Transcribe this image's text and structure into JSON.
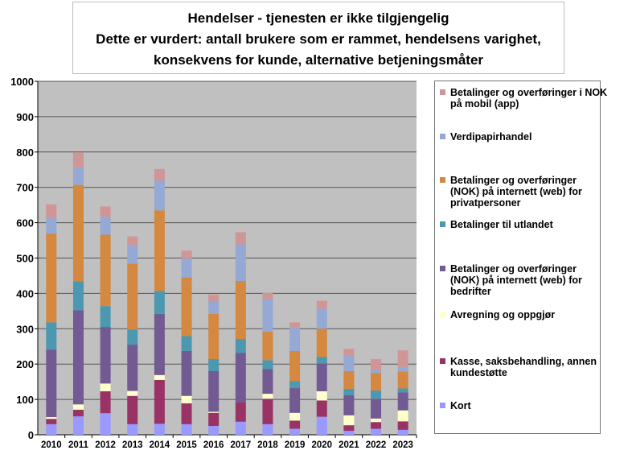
{
  "chart_data": {
    "type": "bar",
    "stacked": true,
    "title": [
      "Hendelser - tjenesten er ikke tilgjengelig",
      "Dette er vurdert: antall brukere som er rammet, hendelsens varighet,",
      "konsekvens for kunde, alternative betjeningsmåter"
    ],
    "xlabel": "",
    "ylabel": "",
    "ylim": [
      0,
      1000
    ],
    "yticks": [
      "0",
      "100",
      "200",
      "300",
      "400",
      "500",
      "600",
      "700",
      "800",
      "900",
      "1000"
    ],
    "grid": true,
    "legend_position": "right",
    "categories": [
      "2010",
      "2011",
      "2012",
      "2013",
      "2014",
      "2015",
      "2016",
      "2017",
      "2018",
      "2019",
      "2020",
      "2021",
      "2022",
      "2023"
    ],
    "series": [
      {
        "name": "Kort",
        "color": "#9999ff",
        "values": [
          30,
          52,
          61,
          30,
          31,
          30,
          25,
          37,
          30,
          17,
          51,
          11,
          17,
          14
        ]
      },
      {
        "name": "Kasse, saksbehandling, annen kundestøtte",
        "color": "#993366",
        "values": [
          15,
          19,
          62,
          80,
          124,
          59,
          37,
          55,
          72,
          23,
          46,
          16,
          19,
          24
        ]
      },
      {
        "name": "Avregning og oppgjør",
        "color": "#ffffcc",
        "values": [
          5,
          15,
          22,
          14,
          14,
          21,
          3,
          0,
          14,
          22,
          26,
          28,
          10,
          31
        ]
      },
      {
        "name": "Betalinger og overføringer (NOK) på internett (web) for bedrifter",
        "color": "#725a92",
        "values": [
          191,
          266,
          160,
          131,
          173,
          127,
          115,
          140,
          70,
          70,
          79,
          57,
          56,
          51
        ]
      },
      {
        "name": "Betalinger til utlandet",
        "color": "#4b98b0",
        "values": [
          77,
          82,
          59,
          43,
          65,
          42,
          34,
          39,
          25,
          20,
          18,
          18,
          23,
          11
        ]
      },
      {
        "name": "Betalinger og overføringer (NOK) på internett (web) for privatpersoner",
        "color": "#d48840",
        "values": [
          251,
          273,
          202,
          186,
          228,
          166,
          128,
          164,
          81,
          85,
          80,
          50,
          50,
          48
        ]
      },
      {
        "name": "Verdipapirhandel",
        "color": "#95a9d4",
        "values": [
          45,
          50,
          51,
          53,
          84,
          54,
          35,
          104,
          92,
          68,
          57,
          43,
          8,
          13
        ]
      },
      {
        "name": "Betalinger og overføringer i NOK på mobil (app)",
        "color": "#d09595",
        "values": [
          38,
          42,
          29,
          24,
          33,
          22,
          20,
          34,
          17,
          13,
          22,
          20,
          31,
          47
        ]
      }
    ]
  }
}
